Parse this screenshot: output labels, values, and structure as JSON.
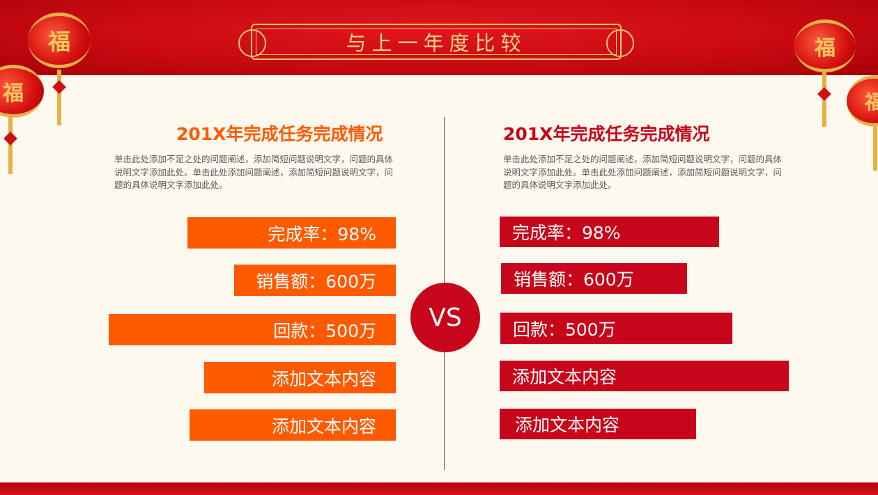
{
  "header": {
    "title": "与上一年度比较",
    "lantern_char": "福"
  },
  "left": {
    "title": "201X年完成任务完成情况",
    "title_color": "#ff5a00",
    "description": "单击此处添加不足之处的问题阐述，添加简短问题说明文字，问题的具体说明文字添加此处。单击此处添加问题阐述，添加简短问题说明文字，问题的具体说明文字添加此处。",
    "items": [
      "完成率：98%",
      "销售额：600万",
      "回款：500万",
      "添加文本内容",
      "添加文本内容"
    ]
  },
  "right": {
    "title": "201X年完成任务完成情况",
    "title_color": "#c8061b",
    "description": "单击此处添加不足之处的问题阐述，添加简短问题说明文字，问题的具体说明文字添加此处。单击此处添加问题阐述，添加简短问题说明文字，问题的具体说明文字添加此处。",
    "items": [
      "完成率：98%",
      "销售额：600万",
      "回款：500万",
      "添加文本内容",
      "添加文本内容"
    ]
  },
  "vs": "VS"
}
